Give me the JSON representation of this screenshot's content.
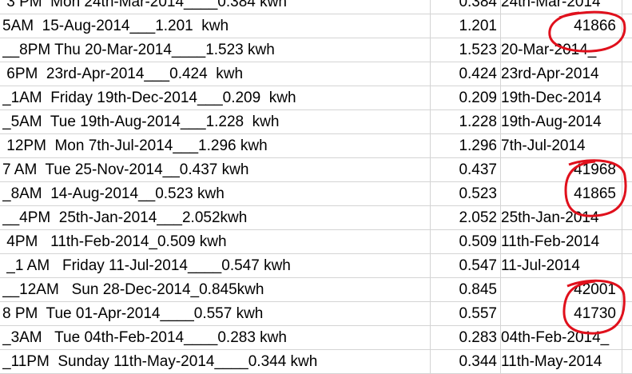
{
  "rows": [
    {
      "desc": " 3 PM  Mon 24th-Mar-2014____0.384 kwh",
      "value": "0.384",
      "date": "24th-Mar-2014"
    },
    {
      "desc": "5AM  15-Aug-2014___1.201  kwh",
      "value": "1.201",
      "date": "41866"
    },
    {
      "desc": "__8PM Thu 20-Mar-2014____1.523 kwh",
      "value": "1.523",
      "date": "20-Mar-2014_"
    },
    {
      "desc": " 6PM  23rd-Apr-2014___0.424  kwh",
      "value": "0.424",
      "date": "23rd-Apr-2014"
    },
    {
      "desc": "_1AM  Friday 19th-Dec-2014___0.209  kwh",
      "value": "0.209",
      "date": "19th-Dec-2014"
    },
    {
      "desc": "_5AM  Tue 19th-Aug-2014___1.228  kwh",
      "value": "1.228",
      "date": "19th-Aug-2014"
    },
    {
      "desc": " 12PM  Mon 7th-Jul-2014___1.296 kwh",
      "value": "1.296",
      "date": "7th-Jul-2014"
    },
    {
      "desc": "7 AM  Tue 25-Nov-2014__0.437 kwh",
      "value": "0.437",
      "date": "41968"
    },
    {
      "desc": "_8AM  14-Aug-2014__0.523 kwh",
      "value": "0.523",
      "date": "41865"
    },
    {
      "desc": "__4PM  25th-Jan-2014___2.052kwh",
      "value": "2.052",
      "date": "25th-Jan-2014"
    },
    {
      "desc": " 4PM   11th-Feb-2014_0.509 kwh",
      "value": "0.509",
      "date": "11th-Feb-2014"
    },
    {
      "desc": " _1 AM   Friday 11-Jul-2014____0.547 kwh",
      "value": "0.547",
      "date": "11-Jul-2014"
    },
    {
      "desc": "__12AM   Sun 28-Dec-2014_0.845kwh",
      "value": "0.845",
      "date": "42001"
    },
    {
      "desc": "8 PM  Tue 01-Apr-2014____0.557 kwh",
      "value": "0.557",
      "date": "41730"
    },
    {
      "desc": "_3AM   Tue 04th-Feb-2014____0.283 kwh",
      "value": "0.283",
      "date": "04th-Feb-2014_"
    },
    {
      "desc": "_11PM  Sunday 11th-May-2014____0.344 kwh",
      "value": "0.344",
      "date": "11th-May-2014"
    }
  ],
  "numeric_rows": [
    1,
    7,
    8,
    12,
    13
  ],
  "annotation_color": "#e0101c"
}
